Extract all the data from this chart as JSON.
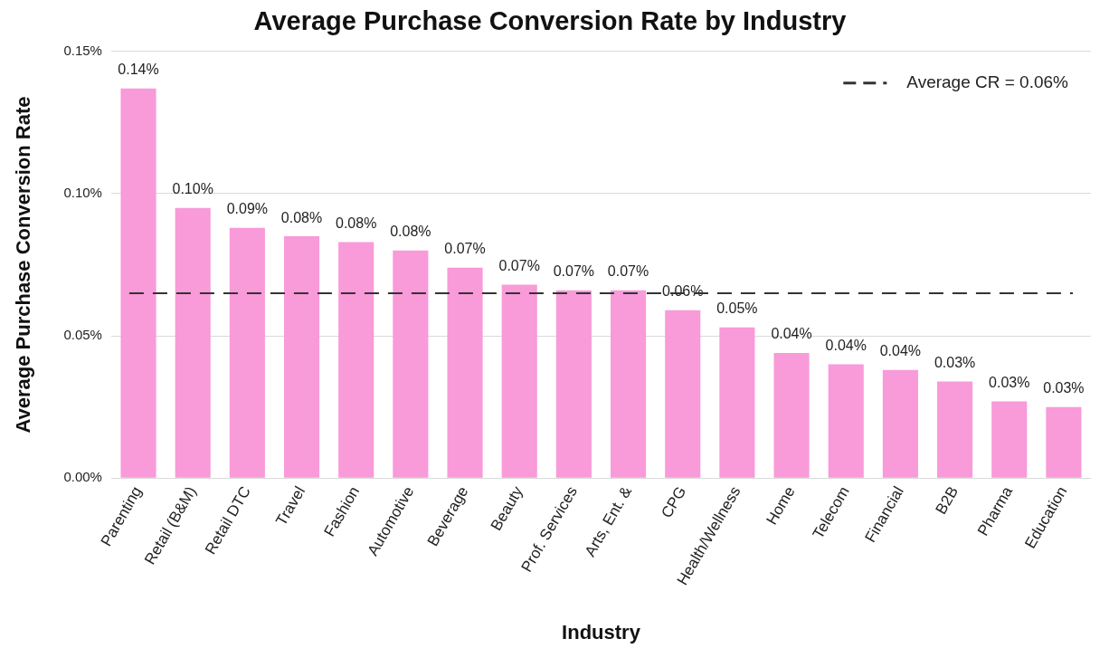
{
  "chart_data": {
    "type": "bar",
    "title": "Average Purchase Conversion Rate by Industry",
    "xlabel": "Industry",
    "ylabel": "Average Purchase Conversion Rate",
    "categories": [
      "Parenting",
      "Retail (B&M)",
      "Retail DTC",
      "Travel",
      "Fashion",
      "Automotive",
      "Beverage",
      "Beauty",
      "Prof. Services",
      "Arts, Ent. &",
      "CPG",
      "Health/Wellness",
      "Home",
      "Telecom",
      "Financial",
      "B2B",
      "Pharma",
      "Education"
    ],
    "values": [
      0.137,
      0.095,
      0.088,
      0.085,
      0.083,
      0.08,
      0.074,
      0.068,
      0.066,
      0.066,
      0.059,
      0.053,
      0.044,
      0.04,
      0.038,
      0.034,
      0.027,
      0.025
    ],
    "value_labels": [
      "0.14%",
      "0.10%",
      "0.09%",
      "0.08%",
      "0.08%",
      "0.08%",
      "0.07%",
      "0.07%",
      "0.07%",
      "0.07%",
      "0.06%",
      "0.05%",
      "0.04%",
      "0.04%",
      "0.04%",
      "0.03%",
      "0.03%",
      "0.03%"
    ],
    "color": "#f99ad9",
    "ylim": [
      0,
      0.15
    ],
    "yticks": [
      {
        "value": 0,
        "label": "0.00%"
      },
      {
        "value": 0.05,
        "label": "0.05%"
      },
      {
        "value": 0.1,
        "label": "0.10%"
      },
      {
        "value": 0.15,
        "label": "0.15%"
      }
    ],
    "grid": "y",
    "ref_lines": [
      {
        "axis": "y",
        "value": 0.065,
        "label": "Average CR = 0.06%",
        "color": "#333333",
        "line_style": "dashed"
      }
    ]
  }
}
